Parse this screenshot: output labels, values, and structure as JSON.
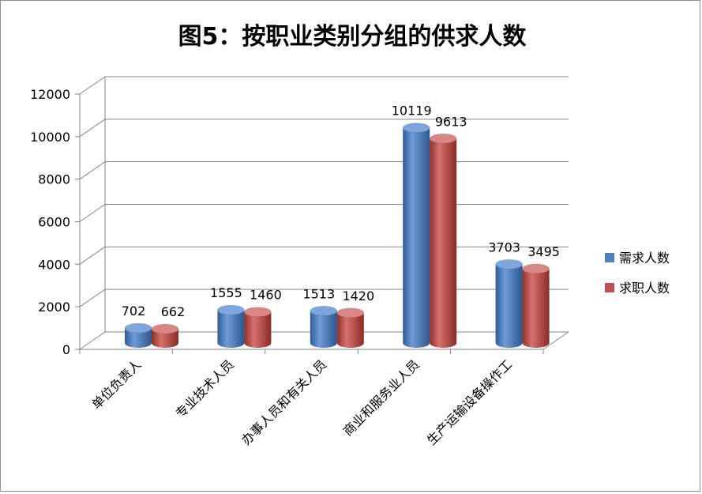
{
  "chart_data": {
    "type": "bar",
    "title": "图5：按职业类别分组的供求人数",
    "categories": [
      "单位负责人",
      "专业技术人员",
      "办事人员和有关人员",
      "商业和服务业人员",
      "生产运输设备操作工"
    ],
    "series": [
      {
        "name": "需求人数",
        "values": [
          702,
          1555,
          1513,
          10119,
          3703
        ],
        "color": "#4f81bd"
      },
      {
        "name": "求职人数",
        "values": [
          662,
          1460,
          1420,
          9613,
          3495
        ],
        "color": "#c0504d"
      }
    ],
    "xlabel": "",
    "ylabel": "",
    "ylim": [
      0,
      12000
    ],
    "yticks": [
      0,
      2000,
      4000,
      6000,
      8000,
      10000,
      12000
    ],
    "grid": true,
    "legend": "right"
  }
}
